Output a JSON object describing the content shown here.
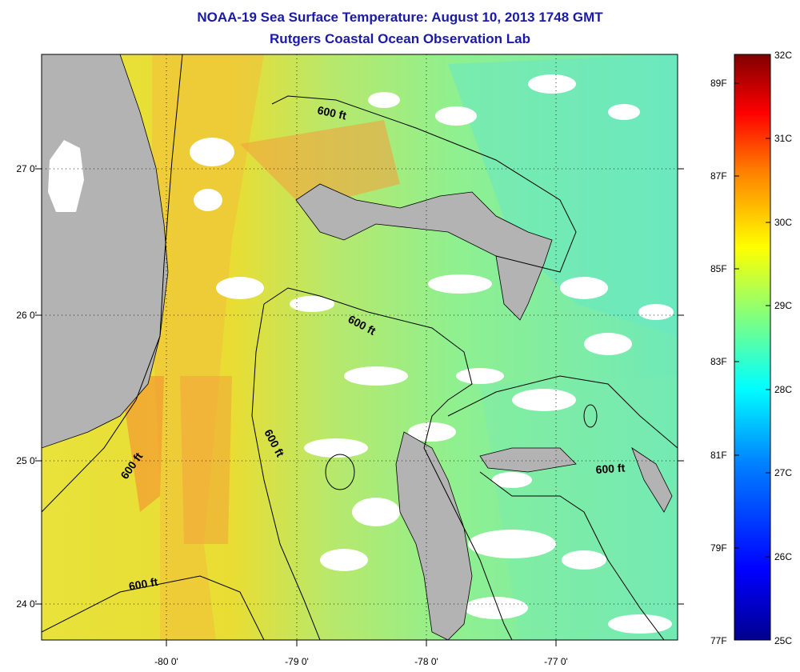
{
  "title_line1": "NOAA-19 Sea Surface Temperature:  August 10, 2013 1748 GMT",
  "title_line2": "Rutgers Coastal Ocean Observation Lab",
  "map": {
    "lat_labels": [
      "27 0'",
      "26 0'",
      "25 0'",
      "24 0'"
    ],
    "lon_labels": [
      "-80 0'",
      "-79 0'",
      "-78 0'",
      "-77 0'"
    ],
    "lat_range": [
      23.75,
      27.8
    ],
    "lon_range": [
      -80.95,
      -76.0
    ],
    "isobath_labels": [
      "600 ft",
      "600 ft",
      "600 ft",
      "600 ft",
      "600 ft",
      "600 ft"
    ],
    "colors": {
      "land": "#b3b3b3",
      "cloud": "#ffffff",
      "frame": "#000000"
    }
  },
  "colorbar": {
    "celsius_labels": [
      "32C",
      "31C",
      "30C",
      "29C",
      "28C",
      "27C",
      "26C",
      "25C"
    ],
    "fahrenheit_labels": [
      "89F",
      "87F",
      "85F",
      "83F",
      "81F",
      "79F",
      "77F"
    ],
    "range_c": [
      25,
      32
    ],
    "colormap": [
      "#00008f",
      "#0000ff",
      "#0080ff",
      "#00ffff",
      "#80ff80",
      "#ffff00",
      "#ff8000",
      "#ff0000",
      "#800000"
    ]
  }
}
